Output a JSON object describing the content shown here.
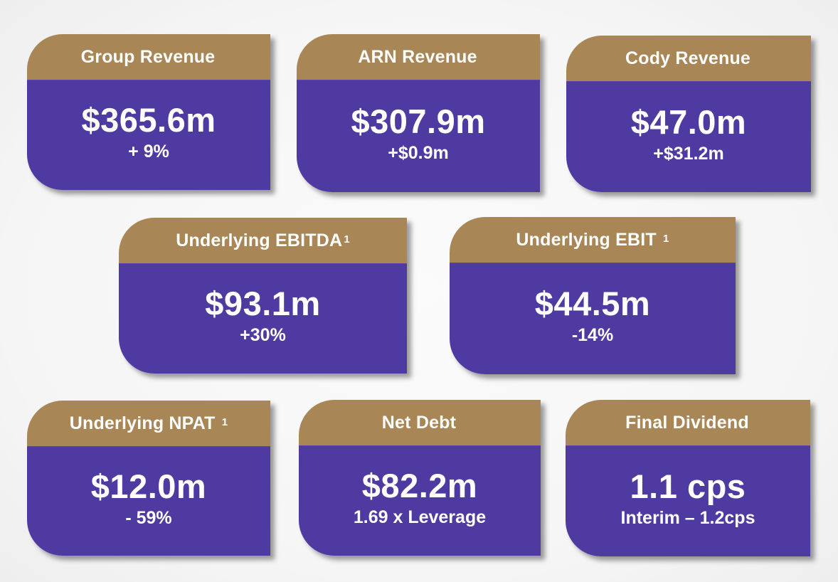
{
  "cards": [
    {
      "title": "Group Revenue",
      "sup": "",
      "value": "$365.6m",
      "sub": "+ 9%"
    },
    {
      "title": "ARN Revenue",
      "sup": "",
      "value": "$307.9m",
      "sub": "+$0.9m"
    },
    {
      "title": "Cody Revenue",
      "sup": "",
      "value": "$47.0m",
      "sub": "+$31.2m"
    },
    {
      "title": "Underlying EBITDA",
      "sup": "1",
      "value": "$93.1m",
      "sub": "+30%"
    },
    {
      "title": "Underlying EBIT ",
      "sup": "1",
      "value": "$44.5m",
      "sub": "-14%"
    },
    {
      "title": "Underlying NPAT ",
      "sup": "1",
      "value": "$12.0m",
      "sub": "- 59%"
    },
    {
      "title": "Net Debt",
      "sup": "",
      "value": "$82.2m",
      "sub": "1.69 x Leverage"
    },
    {
      "title": "Final Dividend",
      "sup": "",
      "value": "1.1 cps",
      "sub": "Interim – 1.2cps"
    }
  ],
  "colors": {
    "header": "#a98655",
    "body": "#4e3aa1",
    "text": "#ffffff"
  }
}
